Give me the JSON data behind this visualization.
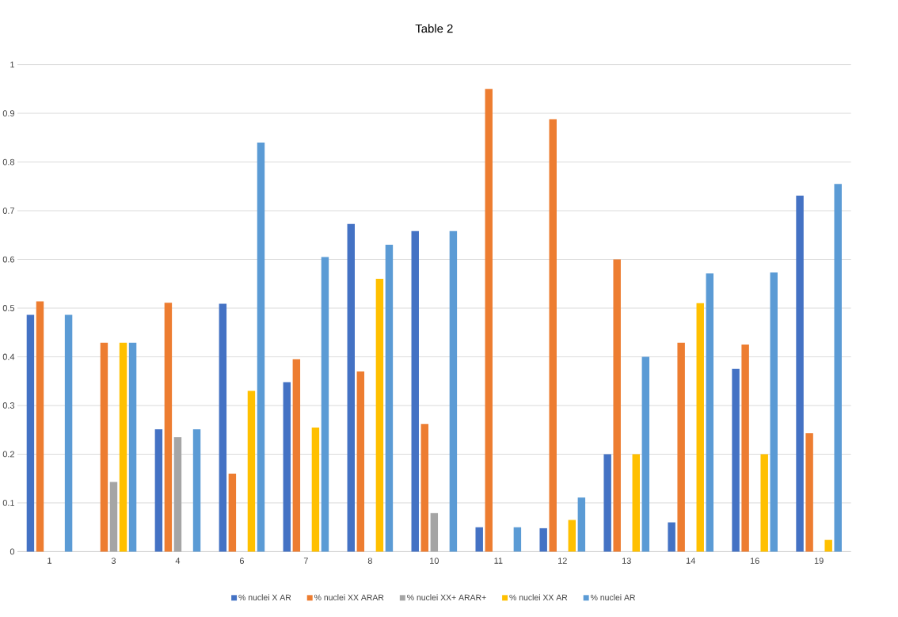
{
  "chart_data": {
    "type": "bar",
    "title": "Table 2",
    "categories": [
      "1",
      "3",
      "4",
      "6",
      "7",
      "8",
      "10",
      "11",
      "12",
      "13",
      "14",
      "16",
      "19"
    ],
    "series": [
      {
        "name": "% nuclei X AR",
        "color": "#4472c4",
        "values": [
          0.486,
          0,
          0.251,
          0.509,
          0.348,
          0.673,
          0.658,
          0.05,
          0.048,
          0.2,
          0.06,
          0.375,
          0.731
        ]
      },
      {
        "name": "% nuclei XX ARAR",
        "color": "#ed7d31",
        "values": [
          0.514,
          0.429,
          0.511,
          0.16,
          0.395,
          0.37,
          0.262,
          0.95,
          0.888,
          0.6,
          0.429,
          0.425,
          0.243
        ]
      },
      {
        "name": "% nuclei XX+ ARAR+",
        "color": "#a5a5a5",
        "values": [
          0,
          0.143,
          0.235,
          0,
          0,
          0,
          0.079,
          0,
          0,
          0,
          0,
          0,
          0
        ]
      },
      {
        "name": "% nuclei XX AR",
        "color": "#ffc000",
        "values": [
          0,
          0.429,
          0,
          0.33,
          0.255,
          0.56,
          0,
          0,
          0.065,
          0.2,
          0.51,
          0.2,
          0.024
        ]
      },
      {
        "name": "% nuclei AR",
        "color": "#5b9bd5",
        "values": [
          0.486,
          0.429,
          0.251,
          0.84,
          0.605,
          0.63,
          0.658,
          0.05,
          0.111,
          0.4,
          0.571,
          0.573,
          0.755
        ]
      }
    ],
    "ylim": [
      0,
      1
    ],
    "yticks": [
      0,
      0.1,
      0.2,
      0.3,
      0.4,
      0.5,
      0.6,
      0.7,
      0.8,
      0.9,
      1
    ],
    "grid": "y",
    "legend": "bottom"
  }
}
